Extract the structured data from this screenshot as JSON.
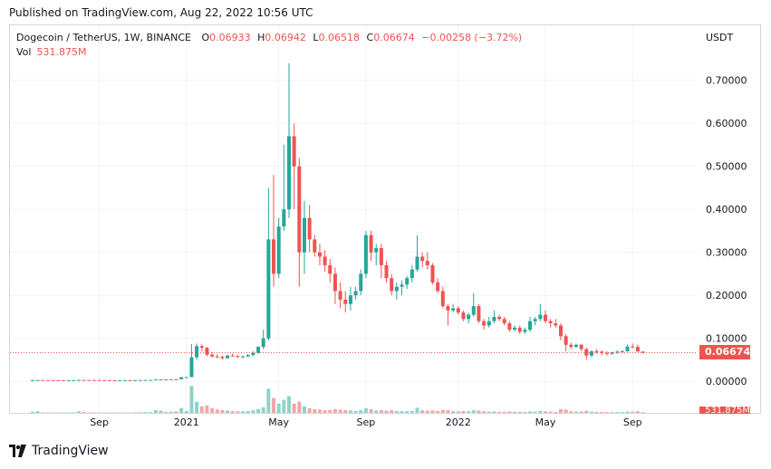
{
  "published": "Published on TradingView.com, Aug 22, 2022 10:56 UTC",
  "legend": {
    "symbol": "Dogecoin / TetherUS, 1W, BINANCE",
    "o_label": "O",
    "o_value": "0.06933",
    "h_label": "H",
    "h_value": "0.06942",
    "l_label": "L",
    "l_value": "0.06518",
    "c_label": "C",
    "c_value": "0.06674",
    "change": "−0.00258 (−3.72%)",
    "vol_label": "Vol",
    "vol_value": "531.875M"
  },
  "quote_currency": "USDT",
  "last_price_tag": "0.06674",
  "last_volume_tag": "531.875M",
  "brand": "TradingView",
  "colors": {
    "up": "#26a69a",
    "down": "#ef5350",
    "up_volume": "#8fd3c9",
    "down_volume": "#f4a6a4"
  },
  "chart_data": {
    "type": "candlestick",
    "ylim": [
      0,
      0.75
    ],
    "y_ticks": [
      "0.70000",
      "0.60000",
      "0.50000",
      "0.40000",
      "0.30000",
      "0.20000",
      "0.10000",
      "0.00000"
    ],
    "y_tick_values": [
      0.7,
      0.6,
      0.5,
      0.4,
      0.3,
      0.2,
      0.1,
      0.0
    ],
    "x_ticks": [
      "Sep",
      "2021",
      "May",
      "Sep",
      "2022",
      "May",
      "Sep"
    ],
    "x_tick_weeks": [
      13,
      30,
      48,
      65,
      83,
      100,
      117
    ],
    "grid": true,
    "candles": [
      [
        0.0028,
        0.003,
        0.0026,
        0.0029,
        0.6
      ],
      [
        0.0029,
        0.0033,
        0.0028,
        0.0032,
        0.9
      ],
      [
        0.0032,
        0.0033,
        0.003,
        0.0031,
        0.3
      ],
      [
        0.0031,
        0.0032,
        0.0029,
        0.003,
        0.2
      ],
      [
        0.003,
        0.0031,
        0.0028,
        0.0029,
        0.2
      ],
      [
        0.0029,
        0.003,
        0.0027,
        0.0028,
        0.2
      ],
      [
        0.0028,
        0.0029,
        0.0026,
        0.0027,
        0.2
      ],
      [
        0.0027,
        0.0028,
        0.0026,
        0.0027,
        0.2
      ],
      [
        0.0027,
        0.0029,
        0.0025,
        0.0028,
        0.3
      ],
      [
        0.0028,
        0.0036,
        0.0027,
        0.0034,
        0.9
      ],
      [
        0.0034,
        0.0037,
        0.0031,
        0.0033,
        0.5
      ],
      [
        0.0033,
        0.0034,
        0.0031,
        0.0032,
        0.3
      ],
      [
        0.0032,
        0.0033,
        0.003,
        0.0031,
        0.2
      ],
      [
        0.0031,
        0.0032,
        0.0029,
        0.003,
        0.2
      ],
      [
        0.003,
        0.0031,
        0.0028,
        0.0029,
        0.2
      ],
      [
        0.0029,
        0.003,
        0.0026,
        0.0027,
        0.2
      ],
      [
        0.0027,
        0.0028,
        0.0025,
        0.0026,
        0.2
      ],
      [
        0.0026,
        0.0028,
        0.0025,
        0.0027,
        0.2
      ],
      [
        0.0027,
        0.0029,
        0.0026,
        0.0028,
        0.2
      ],
      [
        0.0028,
        0.0029,
        0.0026,
        0.0027,
        0.2
      ],
      [
        0.0027,
        0.003,
        0.0026,
        0.0029,
        0.3
      ],
      [
        0.0029,
        0.0031,
        0.0028,
        0.003,
        0.3
      ],
      [
        0.003,
        0.0034,
        0.0029,
        0.0033,
        0.4
      ],
      [
        0.0033,
        0.0035,
        0.0031,
        0.0034,
        0.4
      ],
      [
        0.0034,
        0.0046,
        0.0033,
        0.0045,
        1.5
      ],
      [
        0.0045,
        0.0052,
        0.004,
        0.0046,
        1.2
      ],
      [
        0.0046,
        0.0048,
        0.0043,
        0.0045,
        0.5
      ],
      [
        0.0045,
        0.005,
        0.0044,
        0.0049,
        0.7
      ],
      [
        0.0049,
        0.0052,
        0.0046,
        0.0048,
        0.8
      ],
      [
        0.0048,
        0.0098,
        0.0047,
        0.0097,
        2.6
      ],
      [
        0.0097,
        0.0102,
        0.008,
        0.01,
        1.0
      ],
      [
        0.01,
        0.087,
        0.0093,
        0.056,
        14.5
      ],
      [
        0.056,
        0.088,
        0.05,
        0.082,
        6.0
      ],
      [
        0.082,
        0.086,
        0.07,
        0.078,
        3.5
      ],
      [
        0.078,
        0.08,
        0.058,
        0.062,
        4.0
      ],
      [
        0.062,
        0.068,
        0.055,
        0.058,
        2.5
      ],
      [
        0.058,
        0.063,
        0.054,
        0.057,
        1.8
      ],
      [
        0.057,
        0.06,
        0.051,
        0.054,
        1.5
      ],
      [
        0.054,
        0.062,
        0.052,
        0.06,
        1.3
      ],
      [
        0.06,
        0.065,
        0.057,
        0.059,
        1.0
      ],
      [
        0.059,
        0.061,
        0.054,
        0.057,
        0.9
      ],
      [
        0.057,
        0.06,
        0.054,
        0.058,
        0.9
      ],
      [
        0.058,
        0.064,
        0.056,
        0.061,
        1.0
      ],
      [
        0.061,
        0.07,
        0.059,
        0.066,
        1.4
      ],
      [
        0.066,
        0.082,
        0.064,
        0.08,
        2.0
      ],
      [
        0.08,
        0.12,
        0.075,
        0.1,
        3.0
      ],
      [
        0.1,
        0.45,
        0.095,
        0.33,
        13.0
      ],
      [
        0.33,
        0.48,
        0.22,
        0.25,
        8.0
      ],
      [
        0.25,
        0.38,
        0.24,
        0.36,
        5.0
      ],
      [
        0.36,
        0.55,
        0.35,
        0.4,
        7.0
      ],
      [
        0.4,
        0.74,
        0.38,
        0.57,
        9.0
      ],
      [
        0.57,
        0.6,
        0.4,
        0.5,
        5.0
      ],
      [
        0.5,
        0.52,
        0.22,
        0.3,
        6.0
      ],
      [
        0.3,
        0.42,
        0.25,
        0.38,
        3.5
      ],
      [
        0.38,
        0.41,
        0.3,
        0.33,
        2.5
      ],
      [
        0.33,
        0.34,
        0.29,
        0.3,
        2.0
      ],
      [
        0.3,
        0.32,
        0.27,
        0.29,
        1.8
      ],
      [
        0.29,
        0.305,
        0.255,
        0.27,
        1.5
      ],
      [
        0.27,
        0.285,
        0.23,
        0.25,
        1.5
      ],
      [
        0.25,
        0.265,
        0.18,
        0.21,
        2.0
      ],
      [
        0.21,
        0.23,
        0.17,
        0.19,
        1.7
      ],
      [
        0.19,
        0.21,
        0.16,
        0.18,
        1.5
      ],
      [
        0.18,
        0.22,
        0.165,
        0.2,
        1.3
      ],
      [
        0.2,
        0.22,
        0.19,
        0.21,
        1.0
      ],
      [
        0.21,
        0.26,
        0.2,
        0.25,
        1.5
      ],
      [
        0.25,
        0.35,
        0.24,
        0.34,
        2.5
      ],
      [
        0.34,
        0.35,
        0.28,
        0.3,
        2.0
      ],
      [
        0.3,
        0.32,
        0.27,
        0.31,
        1.3
      ],
      [
        0.31,
        0.32,
        0.24,
        0.27,
        1.5
      ],
      [
        0.27,
        0.28,
        0.23,
        0.24,
        1.2
      ],
      [
        0.24,
        0.25,
        0.2,
        0.21,
        1.4
      ],
      [
        0.21,
        0.23,
        0.19,
        0.22,
        1.0
      ],
      [
        0.22,
        0.235,
        0.2,
        0.225,
        0.9
      ],
      [
        0.225,
        0.245,
        0.215,
        0.24,
        0.9
      ],
      [
        0.24,
        0.27,
        0.23,
        0.26,
        1.1
      ],
      [
        0.26,
        0.34,
        0.255,
        0.29,
        2.8
      ],
      [
        0.29,
        0.3,
        0.265,
        0.28,
        1.4
      ],
      [
        0.28,
        0.3,
        0.26,
        0.27,
        1.2
      ],
      [
        0.27,
        0.275,
        0.225,
        0.23,
        1.3
      ],
      [
        0.23,
        0.24,
        0.205,
        0.21,
        1.0
      ],
      [
        0.21,
        0.22,
        0.17,
        0.175,
        1.6
      ],
      [
        0.175,
        0.18,
        0.13,
        0.165,
        1.5
      ],
      [
        0.165,
        0.18,
        0.16,
        0.17,
        0.9
      ],
      [
        0.17,
        0.175,
        0.155,
        0.16,
        0.8
      ],
      [
        0.16,
        0.165,
        0.14,
        0.145,
        1.0
      ],
      [
        0.145,
        0.16,
        0.135,
        0.155,
        0.9
      ],
      [
        0.155,
        0.205,
        0.15,
        0.175,
        1.4
      ],
      [
        0.175,
        0.18,
        0.135,
        0.14,
        1.2
      ],
      [
        0.14,
        0.145,
        0.12,
        0.13,
        0.9
      ],
      [
        0.13,
        0.15,
        0.125,
        0.14,
        0.7
      ],
      [
        0.14,
        0.165,
        0.135,
        0.15,
        0.8
      ],
      [
        0.15,
        0.155,
        0.14,
        0.145,
        0.6
      ],
      [
        0.145,
        0.15,
        0.13,
        0.135,
        0.6
      ],
      [
        0.135,
        0.14,
        0.115,
        0.12,
        0.8
      ],
      [
        0.12,
        0.13,
        0.115,
        0.125,
        0.6
      ],
      [
        0.125,
        0.13,
        0.11,
        0.115,
        0.6
      ],
      [
        0.115,
        0.125,
        0.11,
        0.12,
        0.5
      ],
      [
        0.12,
        0.15,
        0.115,
        0.14,
        0.8
      ],
      [
        0.14,
        0.15,
        0.13,
        0.145,
        0.7
      ],
      [
        0.145,
        0.18,
        0.14,
        0.155,
        1.1
      ],
      [
        0.155,
        0.165,
        0.135,
        0.14,
        0.8
      ],
      [
        0.14,
        0.145,
        0.125,
        0.135,
        0.6
      ],
      [
        0.135,
        0.145,
        0.125,
        0.13,
        0.5
      ],
      [
        0.13,
        0.135,
        0.095,
        0.105,
        2.0
      ],
      [
        0.105,
        0.11,
        0.07,
        0.085,
        1.8
      ],
      [
        0.085,
        0.09,
        0.075,
        0.08,
        0.9
      ],
      [
        0.08,
        0.088,
        0.078,
        0.085,
        0.7
      ],
      [
        0.085,
        0.087,
        0.07,
        0.075,
        0.8
      ],
      [
        0.075,
        0.078,
        0.05,
        0.06,
        1.1
      ],
      [
        0.06,
        0.072,
        0.056,
        0.07,
        0.7
      ],
      [
        0.07,
        0.075,
        0.064,
        0.069,
        0.5
      ],
      [
        0.069,
        0.072,
        0.061,
        0.066,
        0.5
      ],
      [
        0.066,
        0.07,
        0.06,
        0.064,
        0.4
      ],
      [
        0.064,
        0.069,
        0.062,
        0.067,
        0.4
      ],
      [
        0.067,
        0.072,
        0.064,
        0.069,
        0.4
      ],
      [
        0.069,
        0.072,
        0.066,
        0.07,
        0.4
      ],
      [
        0.07,
        0.086,
        0.069,
        0.081,
        0.7
      ],
      [
        0.081,
        0.088,
        0.077,
        0.08,
        0.6
      ],
      [
        0.08,
        0.085,
        0.069,
        0.0693,
        0.9
      ],
      [
        0.06933,
        0.06942,
        0.06518,
        0.06674,
        0.4
      ]
    ]
  }
}
